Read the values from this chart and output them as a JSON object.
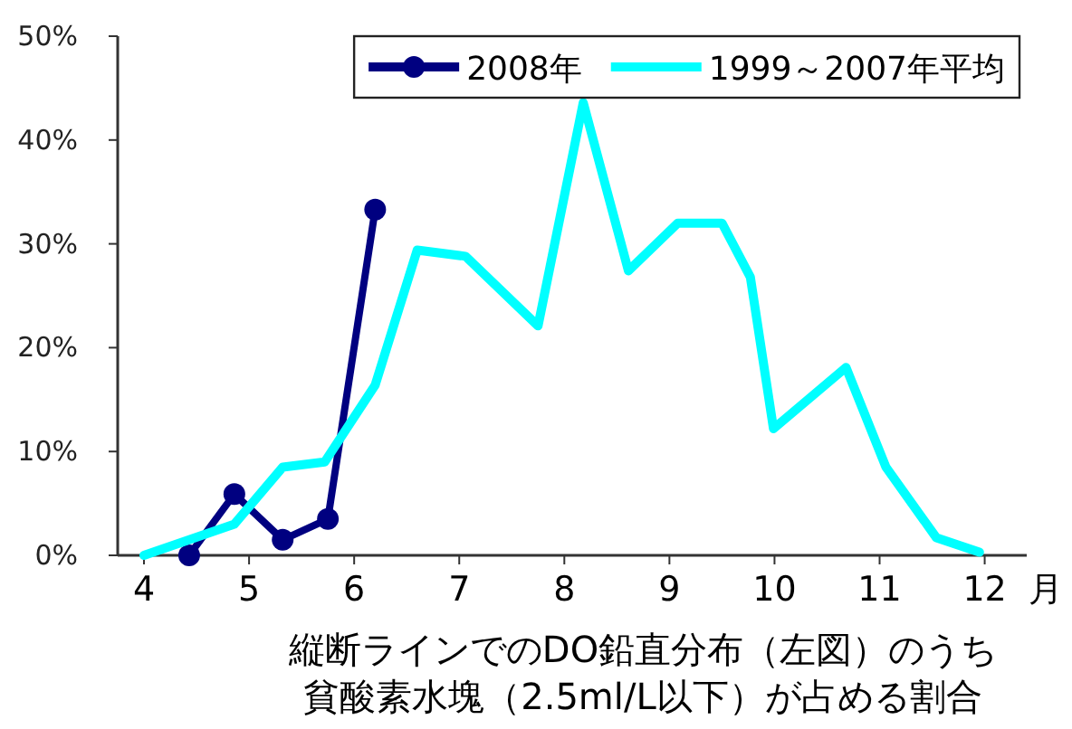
{
  "chart_data": {
    "type": "line",
    "xlabel": "月",
    "annotations": [
      "縦断ラインでのDO鉛直分布（左図）のうち",
      "貧酸素水塊（2.5ml/L以下）が占める割合"
    ],
    "xlim": [
      3.75,
      12.4
    ],
    "xticks": [
      4,
      5,
      6,
      7,
      8,
      9,
      10,
      11,
      12
    ],
    "ylim": [
      0,
      50
    ],
    "yticks": [
      {
        "value": 0,
        "label": "0%"
      },
      {
        "value": 10,
        "label": "10%"
      },
      {
        "value": 20,
        "label": "20%"
      },
      {
        "value": 30,
        "label": "30%"
      },
      {
        "value": 40,
        "label": "40%"
      },
      {
        "value": 50,
        "label": "50%"
      }
    ],
    "legend": "top right",
    "series": [
      {
        "name": "2008年",
        "color": "#000080",
        "marker": "circle",
        "x": [
          4.43,
          4.86,
          5.32,
          5.75,
          6.2
        ],
        "values": [
          0,
          5.9,
          1.5,
          3.5,
          33.3
        ]
      },
      {
        "name": "1999～2007年平均",
        "color": "#00ffff",
        "marker": "none",
        "x": [
          4,
          4.86,
          5.32,
          5.72,
          6.2,
          6.6,
          7.06,
          7.75,
          8.18,
          8.61,
          9.08,
          9.5,
          9.77,
          9.99,
          10.68,
          11.06,
          11.54,
          11.95
        ],
        "values": [
          0,
          3,
          8.5,
          9,
          16.4,
          29.4,
          28.8,
          22.1,
          43.6,
          27.4,
          32,
          32,
          26.8,
          12.2,
          18.1,
          8.5,
          1.7,
          0.3
        ]
      }
    ]
  }
}
